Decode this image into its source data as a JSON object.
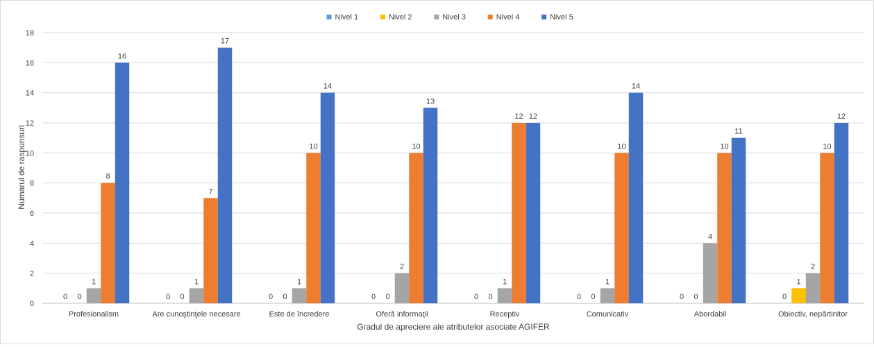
{
  "chart_data": {
    "type": "bar",
    "title": "",
    "xlabel": "Gradul de apreciere ale atributelor asociate AGIFER",
    "ylabel": "Numarul de raspunsuri",
    "ylim": [
      0,
      18
    ],
    "ytick_step": 2,
    "grid": true,
    "legend_position": "top",
    "categories": [
      "Profesionalism",
      "Are cunoştinţele necesare",
      "Este de încredere",
      "Oferă informaţii",
      "Receptiv",
      "Comunicativ",
      "Abordabil",
      "Obiectiv, nepărtinitor"
    ],
    "series": [
      {
        "name": "Nivel 1",
        "color": "#5b9bd5",
        "values": [
          0,
          0,
          0,
          0,
          0,
          0,
          0,
          0
        ]
      },
      {
        "name": "Nivel 2",
        "color": "#ffc000",
        "values": [
          0,
          0,
          0,
          0,
          0,
          0,
          0,
          1
        ]
      },
      {
        "name": "Nivel 3",
        "color": "#a5a5a5",
        "values": [
          1,
          1,
          1,
          2,
          1,
          1,
          4,
          2
        ]
      },
      {
        "name": "Nivel 4",
        "color": "#ed7d31",
        "values": [
          8,
          7,
          10,
          10,
          12,
          10,
          10,
          10
        ]
      },
      {
        "name": "Nivel 5",
        "color": "#4472c4",
        "values": [
          16,
          17,
          14,
          13,
          12,
          14,
          11,
          12
        ]
      }
    ]
  }
}
